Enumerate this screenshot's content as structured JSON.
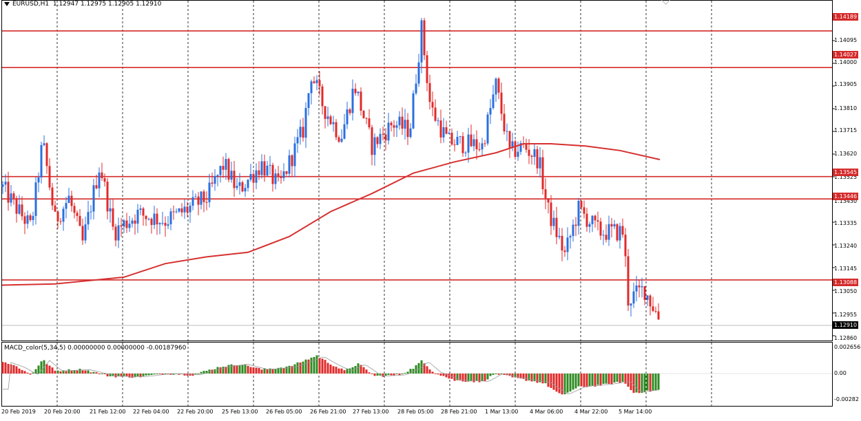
{
  "header": {
    "symbol": "EURUSD,H1",
    "ohlc": "1.12947 1.12975 1.12905 1.12910"
  },
  "macd_header": "MACD_color(5,34,5) 0.00000000 0.00000000 -0.00187960",
  "price_axis": {
    "labels": [
      "1.14095",
      "1.14000",
      "1.13905",
      "1.13810",
      "1.13715",
      "1.13620",
      "1.13525",
      "1.13430",
      "1.13335",
      "1.13240",
      "1.13145",
      "1.13050",
      "1.12955",
      "1.12860"
    ]
  },
  "level_tags": [
    "1.14189",
    "1.14027",
    "1.13545",
    "1.13446",
    "1.13088"
  ],
  "current_price_tag": "1.12910",
  "macd_axis": {
    "labels": [
      "0.002656",
      "0.00",
      "-0.00282"
    ]
  },
  "time_axis": {
    "labels": [
      "20 Feb 2019",
      "20 Feb 20:00",
      "21 Feb 12:00",
      "22 Feb 04:00",
      "22 Feb 20:00",
      "25 Feb 13:00",
      "26 Feb 05:00",
      "26 Feb 21:00",
      "27 Feb 13:00",
      "28 Feb 05:00",
      "28 Feb 21:00",
      "1 Mar 13:00",
      "4 Mar 06:00",
      "4 Mar 22:00",
      "5 Mar 14:00"
    ]
  },
  "colors": {
    "bull": "#2a6fe0",
    "bear": "#e02a2a",
    "level_line": "#d42a2a",
    "ma_line": "#d63030",
    "macd_up": "#2e8b22",
    "macd_down": "#e02a2a"
  },
  "chart_data": {
    "type": "candlestick",
    "price_range": [
      1.1282,
      1.1428
    ],
    "horizontal_levels": [
      1.14189,
      1.14027,
      1.13545,
      1.13446,
      1.13088
    ],
    "current_price": 1.1291,
    "macd_range": [
      -0.00282,
      0.002656
    ]
  }
}
